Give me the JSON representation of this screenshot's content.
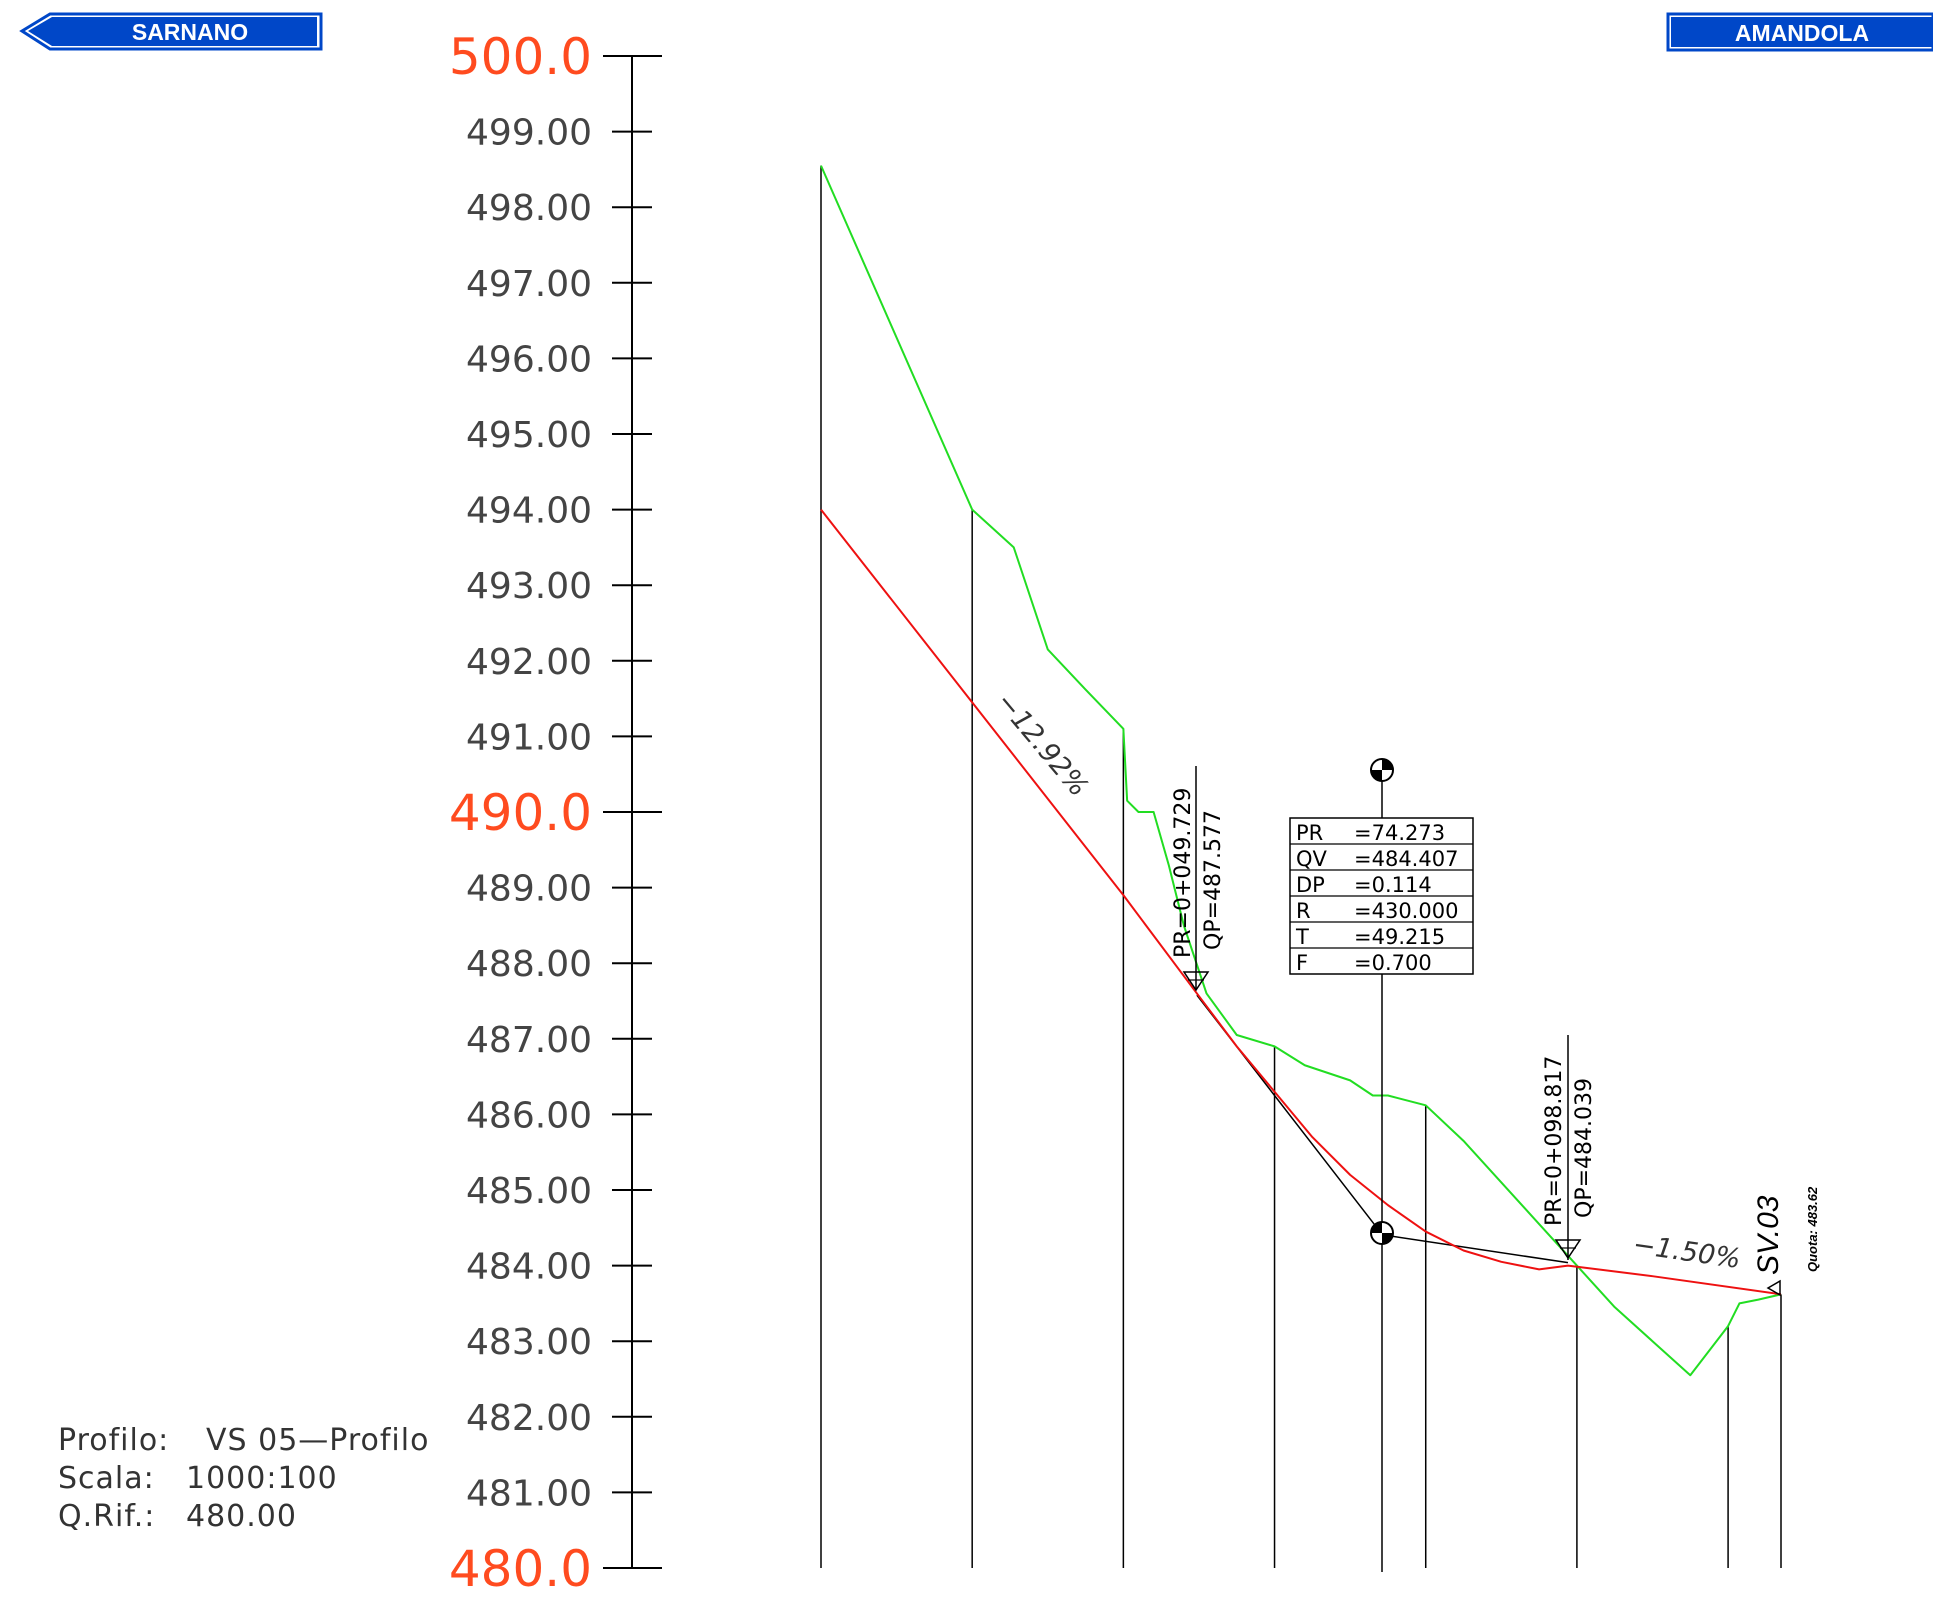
{
  "signs": {
    "left": "SARNANO",
    "right": "AMANDOLA",
    "color": "#0047c8"
  },
  "info": {
    "profilo_label": "Profilo:",
    "profilo_value": "VS 05—Profilo",
    "scala_label": "Scala:",
    "scala_value": "1000:100",
    "qrif_label": "Q.Rif.:",
    "qrif_value": "480.00"
  },
  "chart_data": {
    "type": "line",
    "title": "",
    "xlabel": "",
    "ylabel": "",
    "ylim": [
      480,
      500
    ],
    "major_ticks": [
      "500.0",
      "490.0",
      "480.0"
    ],
    "minor_ticks": [
      "499.00",
      "498.00",
      "497.00",
      "496.00",
      "495.00",
      "494.00",
      "493.00",
      "492.00",
      "491.00",
      "489.00",
      "488.00",
      "487.00",
      "486.00",
      "485.00",
      "484.00",
      "483.00",
      "482.00",
      "481.00"
    ],
    "tick_values_major": [
      500,
      490,
      480
    ],
    "tick_values_minor": [
      499,
      498,
      497,
      496,
      495,
      494,
      493,
      492,
      491,
      489,
      488,
      487,
      486,
      485,
      484,
      483,
      482,
      481
    ],
    "major_color": "#ff4b1f",
    "terrain_color": "#22dd22",
    "project_color": "#ee1111",
    "section_x": [
      0,
      20,
      40,
      60,
      75,
      80,
      100,
      120,
      127
    ],
    "series": [
      {
        "name": "",
        "color": "#22dd22",
        "x": [
          0,
          20,
          25.5,
          30,
          35,
          40,
          40.5,
          42,
          44,
          46,
          48,
          51,
          55,
          60,
          64,
          70,
          73,
          75,
          80,
          85,
          90,
          95,
          100,
          105,
          110,
          115,
          120,
          121.5,
          124,
          127
        ],
        "y": [
          498.55,
          494.0,
          493.5,
          492.15,
          491.62,
          491.1,
          490.15,
          490.0,
          490.0,
          489.3,
          488.5,
          487.6,
          487.05,
          486.9,
          486.65,
          486.45,
          486.25,
          486.25,
          486.12,
          485.65,
          485.1,
          484.55,
          484.0,
          483.45,
          483.0,
          482.55,
          483.2,
          483.5,
          483.55,
          483.62
        ]
      },
      {
        "name": "",
        "color": "#ee1111",
        "x": [
          0,
          20,
          40,
          49.729,
          55,
          60,
          65,
          70,
          75,
          80,
          85,
          90,
          95,
          98.817,
          110,
          127
        ],
        "y": [
          494.0,
          491.45,
          488.9,
          487.6,
          486.9,
          486.3,
          485.7,
          485.2,
          484.8,
          484.45,
          484.2,
          484.05,
          483.95,
          484.0,
          483.86,
          483.62
        ]
      }
    ],
    "tangents": {
      "x": [
        49.729,
        74.273,
        98.817
      ],
      "y": [
        487.577,
        484.407,
        484.039
      ]
    },
    "slopes": [
      "−12.92%",
      "−1.50%"
    ],
    "pvi_1": {
      "pr": "PR=0+049.729",
      "qp": "QP=487.577"
    },
    "pvi_2": {
      "pr": "PR=0+098.817",
      "qp": "QP=484.039"
    },
    "vertical_curve": [
      {
        "key": "PR",
        "value": "=74.273"
      },
      {
        "key": "QV",
        "value": "=484.407"
      },
      {
        "key": "DP",
        "value": "=0.114"
      },
      {
        "key": "R",
        "value": "=430.000"
      },
      {
        "key": "T",
        "value": "=49.215"
      },
      {
        "key": "F",
        "value": "=0.700"
      }
    ],
    "end_station": {
      "name": "SV.03",
      "quota": "Quota: 483.62"
    }
  }
}
